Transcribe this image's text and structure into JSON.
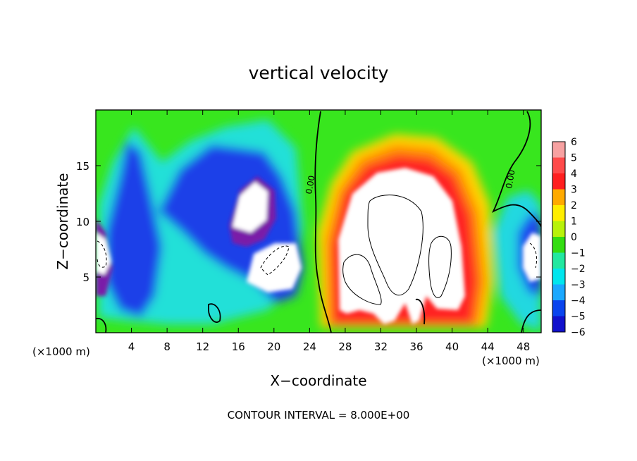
{
  "chart_data": {
    "type": "heatmap",
    "title": "vertical velocity",
    "xlabel": "X−coordinate",
    "ylabel": "Z−coordinate",
    "x_unit_left": "(×1000 m)",
    "x_unit_right": "(×1000 m)",
    "xlim": [
      0,
      50
    ],
    "ylim": [
      0,
      20
    ],
    "x_ticks": [
      4,
      8,
      12,
      16,
      20,
      24,
      28,
      32,
      36,
      40,
      44,
      48
    ],
    "x_tick_labels": [
      "4",
      "8",
      "12",
      "16",
      "20",
      "24",
      "28",
      "32",
      "36",
      "40",
      "44",
      "48"
    ],
    "y_ticks": [
      5,
      10,
      15
    ],
    "y_tick_labels": [
      "5",
      "10",
      "15"
    ],
    "colorbar_values": [
      6,
      5,
      4,
      3,
      2,
      1,
      0,
      -1,
      -2,
      -3,
      -4,
      -5,
      -6
    ],
    "colorbar_labels": [
      "6",
      "5",
      "4",
      "3",
      "2",
      "1",
      "0",
      "−1",
      "−2",
      "−3",
      "−4",
      "−5",
      "−6"
    ],
    "colorbar_colors": [
      "#f7a1a1",
      "#ff4a4a",
      "#ff1f1f",
      "#ffaa00",
      "#ffee00",
      "#b8f20a",
      "#33dd11",
      "#22e8a0",
      "#00e6ee",
      "#1aa8ff",
      "#0a44ee",
      "#1111cc",
      "#7a1aa8"
    ],
    "contour_labels": [
      "0.00",
      "0.00"
    ],
    "footer": "CONTOUR INTERVAL = 8.000E+00"
  }
}
